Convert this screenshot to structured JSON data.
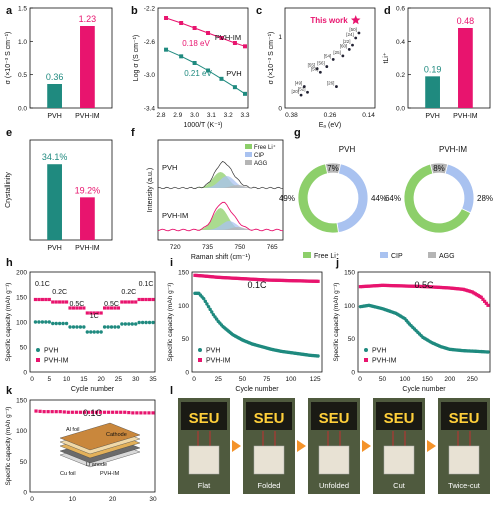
{
  "colors": {
    "pvh": "#1f8a7f",
    "pvhim": "#e8146e",
    "free": "#8dcf6a",
    "cip": "#a9c2f0",
    "agg": "#b5b5b5",
    "orange": "#f4932a"
  },
  "chart_data": [
    {
      "panel": "a",
      "type": "bar",
      "categories": [
        "PVH",
        "PVH-IM"
      ],
      "values": [
        0.36,
        1.23
      ],
      "value_labels": [
        "0.36",
        "1.23"
      ],
      "ylabel": "σ (×10⁻³ S cm⁻¹)",
      "ylim": [
        0,
        1.5
      ],
      "yticks": [
        "0.0",
        "0.5",
        "1.0",
        "1.5"
      ]
    },
    {
      "panel": "b",
      "type": "line",
      "xlabel": "1000/T (K⁻¹)",
      "ylabel": "Log σ (S cm⁻¹)",
      "xlim": [
        2.8,
        3.3
      ],
      "ylim": [
        -3.4,
        -2.2
      ],
      "xticks": [
        "2.8",
        "2.9",
        "3.0",
        "3.1",
        "3.2",
        "3.3"
      ],
      "yticks": [
        "-2.2",
        "-2.6",
        "-3.0",
        "-3.4"
      ],
      "series": [
        {
          "name": "PVH-IM",
          "annotation": "0.18 eV",
          "x": [
            2.83,
            2.92,
            3.0,
            3.08,
            3.16,
            3.24,
            3.3
          ],
          "y": [
            -2.32,
            -2.38,
            -2.44,
            -2.5,
            -2.56,
            -2.62,
            -2.66
          ]
        },
        {
          "name": "PVH",
          "annotation": "0.21 eV",
          "x": [
            2.83,
            2.92,
            3.0,
            3.08,
            3.16,
            3.24,
            3.3
          ],
          "y": [
            -2.7,
            -2.78,
            -2.86,
            -2.95,
            -3.05,
            -3.15,
            -3.23
          ]
        }
      ]
    },
    {
      "panel": "c",
      "type": "scatter",
      "xlabel": "Eₐ (eV)",
      "ylabel": "σ (×10⁻³ S cm⁻¹)",
      "xticks": [
        "0.38",
        "0.26",
        "0.14"
      ],
      "yticks": [
        "0",
        "1"
      ],
      "highlight": "This work",
      "highlight_point": {
        "x": 0.18,
        "y": 1.23
      },
      "points": [
        {
          "label": "[50]",
          "x": 0.17,
          "y": 1.05
        },
        {
          "label": "[24]",
          "x": 0.18,
          "y": 0.98
        },
        {
          "label": "[22]",
          "x": 0.19,
          "y": 0.88
        },
        {
          "label": "[60]",
          "x": 0.2,
          "y": 0.82
        },
        {
          "label": "[25]",
          "x": 0.22,
          "y": 0.73
        },
        {
          "label": "[54]",
          "x": 0.25,
          "y": 0.68
        },
        {
          "label": "[56]",
          "x": 0.27,
          "y": 0.58
        },
        {
          "label": "[55]",
          "x": 0.3,
          "y": 0.55
        },
        {
          "label": "[58]",
          "x": 0.29,
          "y": 0.5
        },
        {
          "label": "[26]",
          "x": 0.24,
          "y": 0.3
        },
        {
          "label": "[49]",
          "x": 0.34,
          "y": 0.3
        },
        {
          "label": "[52]",
          "x": 0.33,
          "y": 0.22
        },
        {
          "label": "[20]",
          "x": 0.35,
          "y": 0.18
        }
      ]
    },
    {
      "panel": "d",
      "type": "bar",
      "categories": [
        "PVH",
        "PVH-IM"
      ],
      "values": [
        0.19,
        0.48
      ],
      "value_labels": [
        "0.19",
        "0.48"
      ],
      "ylabel": "tLi⁺",
      "ylim": [
        0,
        0.6
      ],
      "yticks": [
        "0.0",
        "0.2",
        "0.4",
        "0.6"
      ]
    },
    {
      "panel": "e",
      "type": "bar",
      "categories": [
        "PVH",
        "PVH-IM"
      ],
      "values": [
        34.1,
        19.2
      ],
      "value_labels": [
        "34.1%",
        "19.2%"
      ],
      "ylabel": "Crystallinity",
      "ylim": [
        0,
        45
      ]
    },
    {
      "panel": "f",
      "type": "area",
      "xlabel": "Raman shift (cm⁻¹)",
      "ylabel": "Intensity (a.u.)",
      "xticks": [
        "720",
        "735",
        "750",
        "765"
      ],
      "legend": [
        "Free Li⁺",
        "CIP",
        "AGG"
      ],
      "samples": [
        "PVH",
        "PVH-IM"
      ]
    },
    {
      "panel": "g",
      "type": "pie",
      "legend": [
        "Free Li⁺",
        "CIP",
        "AGG"
      ],
      "charts": [
        {
          "title": "PVH",
          "values": [
            49,
            44,
            7
          ],
          "labels": [
            "49%",
            "44%",
            "7%"
          ]
        },
        {
          "title": "PVH-IM",
          "values": [
            64,
            28,
            8
          ],
          "labels": [
            "64%",
            "28%",
            "8%"
          ]
        }
      ]
    },
    {
      "panel": "h",
      "type": "scatter",
      "xlabel": "Cycle number",
      "ylabel": "Specific capacity (mAh g⁻¹)",
      "xlim": [
        0,
        35
      ],
      "ylim": [
        0,
        200
      ],
      "xticks": [
        "0",
        "5",
        "10",
        "15",
        "20",
        "25",
        "30",
        "35"
      ],
      "yticks": [
        "0",
        "50",
        "100",
        "150",
        "200"
      ],
      "rate_labels": [
        "0.1C",
        "0.2C",
        "0.5C",
        "1C",
        "0.5C",
        "0.2C",
        "0.1C"
      ],
      "series": [
        {
          "name": "PVH",
          "x": [
            1,
            2,
            3,
            4,
            5,
            6,
            7,
            8,
            9,
            10,
            11,
            12,
            13,
            14,
            15,
            16,
            17,
            18,
            19,
            20,
            21,
            22,
            23,
            24,
            25,
            26,
            27,
            28,
            29,
            30,
            31,
            32,
            33,
            34,
            35
          ],
          "y": [
            100,
            100,
            100,
            100,
            100,
            97,
            97,
            97,
            97,
            97,
            90,
            90,
            90,
            90,
            90,
            80,
            80,
            80,
            80,
            80,
            90,
            90,
            90,
            90,
            90,
            96,
            96,
            96,
            96,
            96,
            99,
            99,
            99,
            99,
            99
          ]
        },
        {
          "name": "PVH-IM",
          "x": [
            1,
            2,
            3,
            4,
            5,
            6,
            7,
            8,
            9,
            10,
            11,
            12,
            13,
            14,
            15,
            16,
            17,
            18,
            19,
            20,
            21,
            22,
            23,
            24,
            25,
            26,
            27,
            28,
            29,
            30,
            31,
            32,
            33,
            34,
            35
          ],
          "y": [
            145,
            145,
            145,
            145,
            145,
            140,
            140,
            140,
            140,
            140,
            128,
            128,
            128,
            128,
            128,
            118,
            118,
            118,
            118,
            118,
            128,
            128,
            128,
            128,
            128,
            140,
            140,
            140,
            140,
            140,
            145,
            145,
            145,
            145,
            145
          ]
        }
      ]
    },
    {
      "panel": "i",
      "type": "line",
      "annotation": "0.1C",
      "xlabel": "Cycle number",
      "ylabel": "Specific capacity (mAh g⁻¹)",
      "xlim": [
        0,
        130
      ],
      "ylim": [
        0,
        150
      ],
      "xticks": [
        "0",
        "25",
        "50",
        "75",
        "100",
        "125"
      ],
      "yticks": [
        "0",
        "50",
        "100",
        "150"
      ],
      "series": [
        {
          "name": "PVH",
          "x": [
            1,
            5,
            10,
            15,
            20,
            25,
            30,
            40,
            50,
            60,
            70,
            80,
            90,
            100,
            110,
            120,
            128
          ],
          "y": [
            118,
            118,
            110,
            98,
            86,
            76,
            68,
            56,
            48,
            42,
            38,
            34,
            31,
            29,
            27,
            25,
            24
          ]
        },
        {
          "name": "PVH-IM",
          "x": [
            1,
            10,
            25,
            50,
            75,
            100,
            128
          ],
          "y": [
            145,
            144,
            142,
            140,
            138,
            137,
            136
          ]
        }
      ]
    },
    {
      "panel": "j",
      "type": "line",
      "annotation": "0.5C",
      "xlabel": "Cycle number",
      "ylabel": "Specific capacity (mAh g⁻¹)",
      "xlim": [
        0,
        285
      ],
      "ylim": [
        0,
        150
      ],
      "xticks": [
        "0",
        "50",
        "100",
        "150",
        "200",
        "250"
      ],
      "yticks": [
        "0",
        "50",
        "100",
        "150"
      ],
      "series": [
        {
          "name": "PVH",
          "x": [
            1,
            20,
            50,
            80,
            100,
            110,
            125,
            140,
            160,
            180,
            200,
            230,
            260,
            285
          ],
          "y": [
            98,
            100,
            95,
            88,
            80,
            72,
            62,
            52,
            44,
            38,
            34,
            32,
            31,
            30
          ]
        },
        {
          "name": "PVH-IM",
          "x": [
            1,
            50,
            100,
            150,
            200,
            230,
            250,
            270,
            285
          ],
          "y": [
            128,
            130,
            129,
            128,
            126,
            124,
            120,
            112,
            100
          ]
        }
      ]
    },
    {
      "panel": "k",
      "type": "line",
      "annotation": "0.1C",
      "xlabel": "Cycle number",
      "ylabel": "Specific capacity (mAh g⁻¹)",
      "xlim": [
        0,
        30
      ],
      "ylim": [
        0,
        150
      ],
      "xticks": [
        "0",
        "10",
        "20",
        "30"
      ],
      "yticks": [
        "0",
        "50",
        "100",
        "150"
      ],
      "inset_labels": [
        "Al foil",
        "Cathode",
        "Li anode",
        "Cu foil",
        "PVH-IM"
      ],
      "series": [
        {
          "name": "PVH-IM",
          "x": [
            1,
            3,
            5,
            7,
            9,
            11,
            13,
            15,
            17,
            19,
            21,
            23,
            25,
            27,
            29,
            30
          ],
          "y": [
            132,
            131,
            131,
            131,
            130,
            130,
            130,
            130,
            130,
            130,
            130,
            130,
            129,
            129,
            129,
            129
          ]
        }
      ]
    }
  ],
  "photos": {
    "panel": "l",
    "sign_text": "SEU",
    "captions": [
      "Flat",
      "Folded",
      "Unfolded",
      "Cut",
      "Twice-cut"
    ]
  },
  "panel_letters": [
    "a",
    "b",
    "c",
    "d",
    "e",
    "f",
    "g",
    "h",
    "i",
    "j",
    "k",
    "l"
  ]
}
